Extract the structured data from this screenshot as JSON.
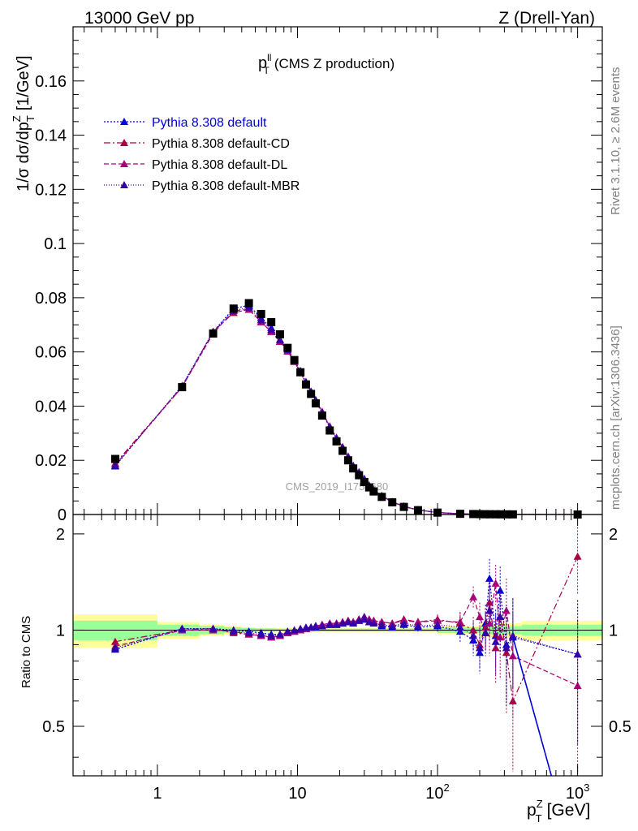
{
  "header": {
    "left": "13000 GeV pp",
    "right": "Z (Drell-Yan)"
  },
  "plot_title": {
    "main": "p",
    "sup": "ll",
    "sub": "T",
    "rest": "(CMS Z production)"
  },
  "side_text": {
    "rivet": "Rivet 3.1.10, ≥ 2.6M events",
    "mcplots": "mcplots.cern.ch [arXiv:1306.3436]"
  },
  "watermark": "CMS_2019_I1753680",
  "ylabel_top": {
    "text": "1/σ dσ/dp",
    "sub": "T",
    "sup": "Z",
    "unit": "[1/GeV]"
  },
  "ylabel_bottom": "Ratio to CMS",
  "xlabel": {
    "text": "p",
    "sub": "T",
    "sup": "Z",
    "unit": "[GeV]"
  },
  "colors": {
    "data": "#000000",
    "default": "#0000dd",
    "cd": "#aa0044",
    "dl": "#aa0077",
    "mbr": "#3300aa",
    "band_green": "#99ff99",
    "band_yellow": "#ffff99"
  },
  "chart_data": {
    "type": "line",
    "x_scale": "log",
    "xlim": [
      0.25,
      1500
    ],
    "x_ticks": [
      {
        "value": 1,
        "label": "1"
      },
      {
        "value": 10,
        "label": "10"
      },
      {
        "value": 100,
        "label": "10",
        "exp": "2"
      },
      {
        "value": 1000,
        "label": "10",
        "exp": "3"
      }
    ],
    "main": {
      "ylim": [
        0,
        0.18
      ],
      "y_ticks": [
        {
          "value": 0,
          "label": "0"
        },
        {
          "value": 0.02,
          "label": "0.02"
        },
        {
          "value": 0.04,
          "label": "0.04"
        },
        {
          "value": 0.06,
          "label": "0.06"
        },
        {
          "value": 0.08,
          "label": "0.08"
        },
        {
          "value": 0.1,
          "label": "0.1"
        },
        {
          "value": 0.12,
          "label": "0.12"
        },
        {
          "value": 0.14,
          "label": "0.14"
        },
        {
          "value": 0.16,
          "label": "0.16"
        }
      ]
    },
    "ratio": {
      "ylim": [
        0.35,
        2.3
      ],
      "y_scale": "log",
      "y_ticks": [
        {
          "value": 0.5,
          "label": "0.5"
        },
        {
          "value": 1,
          "label": "1"
        },
        {
          "value": 2,
          "label": "2"
        }
      ]
    },
    "data_x": [
      0.5,
      1.5,
      2.5,
      3.5,
      4.5,
      5.5,
      6.5,
      7.5,
      8.5,
      9.5,
      10.5,
      11.5,
      12.5,
      13.5,
      15,
      17,
      19,
      21,
      23,
      25,
      27.5,
      30,
      32.5,
      35,
      40,
      47.5,
      57.5,
      72.5,
      100,
      145,
      180,
      200,
      220,
      235,
      260,
      280,
      310,
      345,
      1000
    ],
    "data_y": [
      0.0205,
      0.047,
      0.0668,
      0.076,
      0.078,
      0.074,
      0.071,
      0.0665,
      0.0615,
      0.057,
      0.0525,
      0.048,
      0.0445,
      0.041,
      0.0365,
      0.031,
      0.027,
      0.0235,
      0.02,
      0.017,
      0.0145,
      0.012,
      0.01,
      0.0085,
      0.0065,
      0.0045,
      0.0028,
      0.0016,
      0.0007,
      0.00025,
      0.00017,
      0.00013,
      0.0001,
      9e-05,
      8e-05,
      7e-05,
      6e-05,
      5e-05,
      5e-06
    ],
    "band_edges": [
      0.25,
      1,
      2,
      3,
      4,
      5,
      7,
      10,
      20,
      100,
      200,
      400,
      1500
    ],
    "band_green": [
      0.07,
      0.04,
      0.03,
      0.02,
      0.015,
      0.012,
      0.01,
      0.01,
      0.01,
      0.02,
      0.03,
      0.04
    ],
    "band_yellow": [
      0.12,
      0.06,
      0.04,
      0.03,
      0.02,
      0.016,
      0.014,
      0.014,
      0.014,
      0.03,
      0.05,
      0.07
    ],
    "series": [
      {
        "name": "Pythia 8.308 default",
        "key": "default",
        "dash": "2,2",
        "ratio": [
          0.87,
          1.01,
          1.01,
          1.0,
          0.99,
          0.98,
          0.97,
          0.97,
          0.98,
          0.99,
          1.0,
          1.01,
          1.02,
          1.02,
          1.03,
          1.04,
          1.04,
          1.05,
          1.07,
          1.06,
          1.08,
          1.1,
          1.06,
          1.06,
          1.03,
          1.02,
          1.04,
          1.02,
          1.03,
          0.99,
          0.93,
          0.85,
          1.05,
          1.45,
          0.96,
          1.33,
          0.9,
          0.95,
          0.84
        ],
        "ratio_err": [
          0.02,
          0.01,
          0.01,
          0.01,
          0.01,
          0.01,
          0.01,
          0.01,
          0.01,
          0.01,
          0.01,
          0.01,
          0.01,
          0.01,
          0.01,
          0.01,
          0.01,
          0.01,
          0.01,
          0.01,
          0.02,
          0.02,
          0.02,
          0.02,
          0.02,
          0.02,
          0.03,
          0.03,
          0.04,
          0.08,
          0.1,
          0.12,
          0.15,
          0.22,
          0.2,
          0.25,
          0.3,
          0.3,
          0.4
        ]
      },
      {
        "name": "Pythia 8.308 default-CD",
        "key": "cd",
        "dash": "8,3,2,3",
        "ratio": [
          0.92,
          1.0,
          1.01,
          0.98,
          0.97,
          0.96,
          0.95,
          0.96,
          0.98,
          0.99,
          1.0,
          1.01,
          1.02,
          1.03,
          1.04,
          1.05,
          1.05,
          1.06,
          1.07,
          1.06,
          1.08,
          1.09,
          1.08,
          1.07,
          1.06,
          1.05,
          1.08,
          1.06,
          1.08,
          1.05,
          1.0,
          0.9,
          1.02,
          1.22,
          0.88,
          1.1,
          0.85,
          0.6,
          1.7
        ],
        "ratio_err": [
          0.02,
          0.01,
          0.01,
          0.01,
          0.01,
          0.01,
          0.01,
          0.01,
          0.01,
          0.01,
          0.01,
          0.01,
          0.01,
          0.01,
          0.01,
          0.01,
          0.01,
          0.01,
          0.01,
          0.01,
          0.02,
          0.02,
          0.02,
          0.02,
          0.02,
          0.02,
          0.03,
          0.03,
          0.04,
          0.08,
          0.1,
          0.12,
          0.15,
          0.22,
          0.2,
          0.25,
          0.3,
          0.3,
          0.4
        ]
      },
      {
        "name": "Pythia 8.308 default-DL",
        "key": "dl",
        "dash": "6,3",
        "ratio": [
          0.89,
          1.0,
          1.0,
          0.99,
          0.97,
          0.96,
          0.95,
          0.96,
          0.98,
          0.99,
          1.0,
          1.01,
          1.02,
          1.03,
          1.04,
          1.05,
          1.05,
          1.06,
          1.06,
          1.06,
          1.08,
          1.08,
          1.08,
          1.07,
          1.06,
          1.05,
          1.07,
          1.06,
          1.07,
          1.06,
          1.27,
          1.1,
          0.98,
          1.05,
          1.4,
          0.95,
          1.15,
          0.83,
          0.67
        ],
        "ratio_err": [
          0.02,
          0.01,
          0.01,
          0.01,
          0.01,
          0.01,
          0.01,
          0.01,
          0.01,
          0.01,
          0.01,
          0.01,
          0.01,
          0.01,
          0.01,
          0.01,
          0.01,
          0.01,
          0.01,
          0.01,
          0.02,
          0.02,
          0.02,
          0.02,
          0.02,
          0.02,
          0.03,
          0.03,
          0.04,
          0.08,
          0.1,
          0.12,
          0.15,
          0.22,
          0.2,
          0.25,
          0.3,
          0.3,
          0.4
        ]
      },
      {
        "name": "Pythia 8.308 default-MBR",
        "key": "mbr",
        "dash": "1,2",
        "ratio": [
          0.88,
          1.01,
          1.01,
          0.99,
          0.98,
          0.97,
          0.96,
          0.97,
          0.99,
          1.0,
          1.01,
          1.02,
          1.02,
          1.03,
          1.03,
          1.04,
          1.04,
          1.05,
          1.06,
          1.05,
          1.07,
          1.08,
          1.06,
          1.05,
          1.04,
          1.03,
          1.05,
          1.03,
          1.04,
          1.02,
          0.96,
          0.88,
          0.98,
          1.15,
          0.92,
          1.1,
          0.88,
          0.96,
          0.84
        ],
        "ratio_err": [
          0.02,
          0.01,
          0.01,
          0.01,
          0.01,
          0.01,
          0.01,
          0.01,
          0.01,
          0.01,
          0.01,
          0.01,
          0.01,
          0.01,
          0.01,
          0.01,
          0.01,
          0.01,
          0.01,
          0.01,
          0.02,
          0.02,
          0.02,
          0.02,
          0.02,
          0.02,
          0.03,
          0.03,
          0.04,
          0.08,
          0.1,
          0.12,
          0.15,
          0.22,
          0.2,
          0.25,
          0.3,
          0.3,
          0.4
        ]
      }
    ]
  }
}
